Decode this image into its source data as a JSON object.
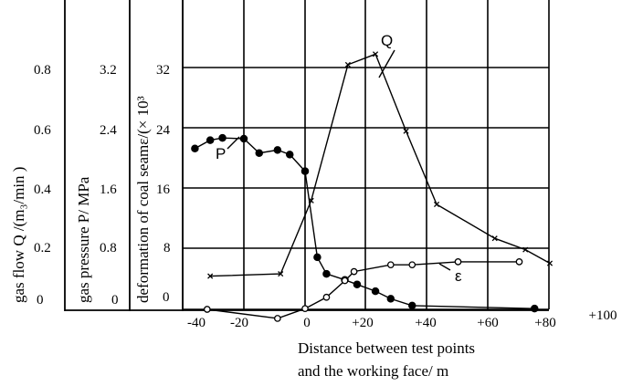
{
  "chart_data": {
    "type": "line",
    "xlabel_line1": "Distance between test points",
    "xlabel_line2": "and the working face/ m",
    "xlim": [
      -45,
      100
    ],
    "x_ticks": [
      "-40",
      "-20",
      "0",
      "+20",
      "+40",
      "+60",
      "+80",
      "+100"
    ],
    "x_tick_values": [
      -40,
      -20,
      0,
      20,
      40,
      60,
      80,
      100
    ],
    "ylim": [
      -2,
      40
    ],
    "gridlines_y": [
      0,
      8,
      16,
      24,
      32
    ],
    "grid": true,
    "y_axes": [
      {
        "label": "gas flow Q /(m₃/min )",
        "ticks": [
          "0",
          "0.2",
          "0.4",
          "0.6",
          "0.8"
        ]
      },
      {
        "label": "gas  pressure P/ MPa",
        "ticks": [
          "0",
          "0.8",
          "1.6",
          "2.4",
          "3.2"
        ]
      },
      {
        "label": "deformation of coal seamε/(× 10³",
        "ticks": [
          "0",
          "8",
          "16",
          "24",
          "32"
        ]
      }
    ],
    "series": [
      {
        "name": "Q",
        "marker": "x",
        "x": [
          -31,
          -8,
          2,
          14,
          23,
          33,
          43,
          62,
          72,
          80
        ],
        "y": [
          4.4,
          4.7,
          14.4,
          32.4,
          33.8,
          23.6,
          13.9,
          9.4,
          7.9,
          6.1
        ]
      },
      {
        "name": "P",
        "marker": "filled-circle",
        "x": [
          -36,
          -31,
          -27,
          -20,
          -15,
          -9,
          -5,
          0,
          4,
          7,
          13,
          17,
          23,
          28,
          35,
          75
        ],
        "y": [
          21.3,
          22.4,
          22.7,
          22.6,
          20.7,
          21.1,
          20.5,
          18.3,
          6.9,
          4.7,
          3.9,
          3.3,
          2.4,
          1.4,
          0.5,
          0.1
        ]
      },
      {
        "name": "ε",
        "marker": "open-circle",
        "x": [
          -32,
          -9,
          0,
          7,
          13,
          16,
          28,
          35,
          50,
          70
        ],
        "y": [
          0,
          -1.2,
          0.1,
          1.6,
          3.8,
          5.0,
          5.9,
          5.9,
          6.3,
          6.3
        ]
      }
    ]
  }
}
